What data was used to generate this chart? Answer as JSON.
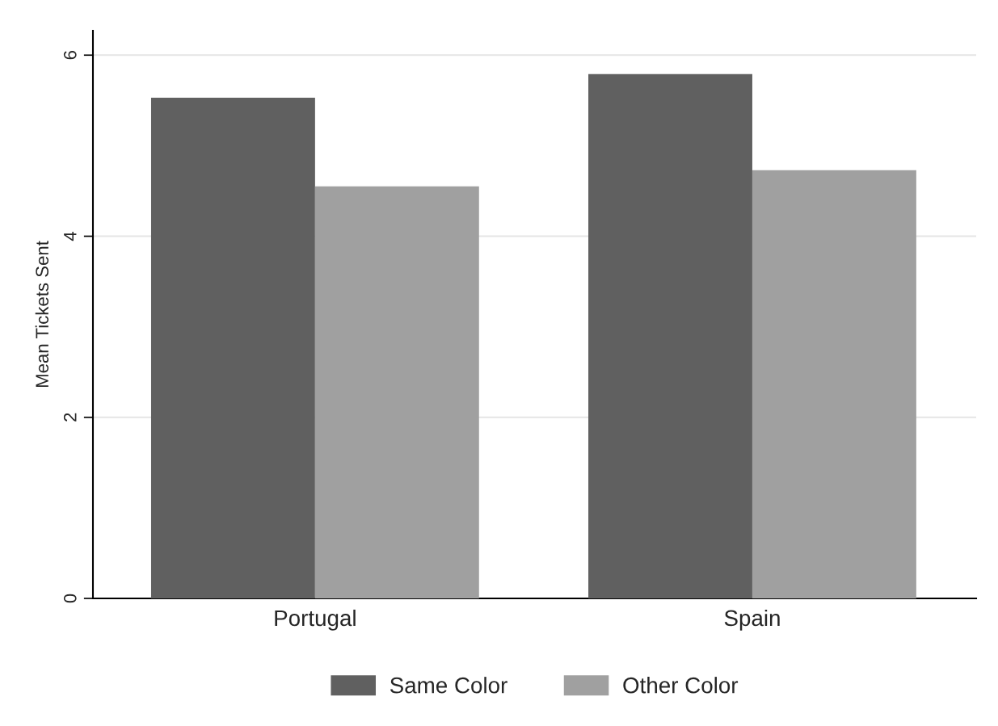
{
  "chart_data": {
    "type": "bar",
    "ylabel": "Mean Tickets Sent",
    "categories": [
      "Portugal",
      "Spain"
    ],
    "series": [
      {
        "name": "Same Color",
        "color": "#606060",
        "values": [
          5.53,
          5.79
        ]
      },
      {
        "name": "Other Color",
        "color": "#a0a0a0",
        "values": [
          4.55,
          4.73
        ]
      }
    ],
    "ylim": [
      0,
      6.27
    ],
    "yticks": [
      0,
      2,
      4,
      6
    ],
    "grid": "y",
    "legend": "bottom"
  }
}
